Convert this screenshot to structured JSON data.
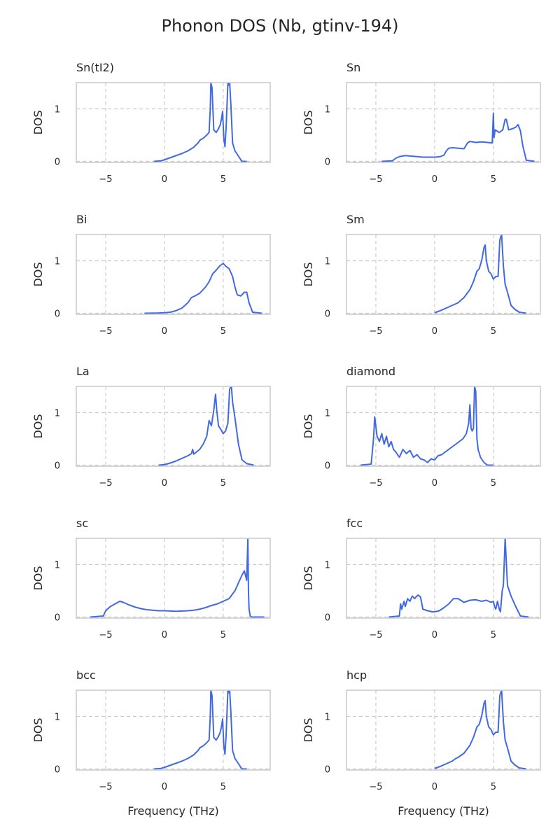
{
  "figure": {
    "title": "Phonon DOS (Nb, gtinv-194)"
  },
  "colors": {
    "line": "#4169e1",
    "grid": "#cccccc",
    "text": "#262626"
  },
  "chart_data": [
    {
      "type": "line",
      "title": "Sn(tI2)",
      "xlabel": "",
      "ylabel": "DOS",
      "xlim": [
        -7.5,
        9.0
      ],
      "ylim": [
        -0.02,
        1.5
      ],
      "xticks": [
        "−5",
        "0",
        "5"
      ],
      "yticks": [
        "0",
        "1"
      ],
      "x": [
        -0.9,
        -0.3,
        0,
        0.5,
        1,
        1.5,
        2,
        2.5,
        2.9,
        3,
        3.3,
        3.6,
        3.8,
        3.9,
        3.95,
        4.05,
        4.2,
        4.4,
        4.6,
        4.75,
        4.85,
        4.95,
        5.05,
        5.15,
        5.25,
        5.4,
        5.5,
        5.55,
        5.65,
        5.8,
        6.0,
        6.3,
        6.5,
        6.6,
        7.0
      ],
      "y": [
        0,
        0.01,
        0.03,
        0.07,
        0.11,
        0.15,
        0.2,
        0.27,
        0.36,
        0.4,
        0.44,
        0.5,
        0.55,
        1.0,
        1.5,
        1.4,
        0.6,
        0.55,
        0.62,
        0.7,
        0.8,
        0.95,
        0.45,
        0.28,
        0.65,
        1.5,
        1.45,
        1.5,
        1.1,
        0.35,
        0.2,
        0.1,
        0.03,
        0,
        0
      ]
    },
    {
      "type": "line",
      "title": "Sn",
      "xlabel": "",
      "ylabel": "DOS",
      "xlim": [
        -7.5,
        9.0
      ],
      "ylim": [
        -0.02,
        1.5
      ],
      "xticks": [
        "−5",
        "0",
        "5"
      ],
      "yticks": [
        "0",
        "1"
      ],
      "x": [
        -4.5,
        -3.6,
        -3.3,
        -3.0,
        -2.5,
        -2.0,
        -1.5,
        -1.0,
        -0.5,
        0,
        0.5,
        0.8,
        1.0,
        1.2,
        1.5,
        2.0,
        2.5,
        2.8,
        3.0,
        3.5,
        4.0,
        4.5,
        4.9,
        5.0,
        5.05,
        5.15,
        5.5,
        5.8,
        6.0,
        6.1,
        6.3,
        6.6,
        6.9,
        7.1,
        7.3,
        7.5,
        7.8,
        8.5
      ],
      "y": [
        0,
        0.01,
        0.06,
        0.09,
        0.11,
        0.1,
        0.09,
        0.08,
        0.08,
        0.08,
        0.09,
        0.12,
        0.2,
        0.25,
        0.26,
        0.25,
        0.24,
        0.35,
        0.38,
        0.36,
        0.37,
        0.36,
        0.35,
        0.92,
        0.45,
        0.6,
        0.55,
        0.6,
        0.8,
        0.8,
        0.6,
        0.62,
        0.65,
        0.7,
        0.58,
        0.3,
        0.02,
        0
      ]
    },
    {
      "type": "line",
      "title": "Bi",
      "xlabel": "",
      "ylabel": "DOS",
      "xlim": [
        -7.5,
        9.0
      ],
      "ylim": [
        -0.02,
        1.5
      ],
      "xticks": [
        "−5",
        "0",
        "5"
      ],
      "yticks": [
        "0",
        "1"
      ],
      "x": [
        -1.7,
        -0.5,
        0,
        0.5,
        1.0,
        1.5,
        2.0,
        2.3,
        2.6,
        3.0,
        3.5,
        3.8,
        4.1,
        4.4,
        4.7,
        5.0,
        5.2,
        5.5,
        5.8,
        6.0,
        6.2,
        6.5,
        6.8,
        7.0,
        7.2,
        7.5,
        8.3
      ],
      "y": [
        0,
        0.005,
        0.01,
        0.02,
        0.05,
        0.1,
        0.2,
        0.3,
        0.33,
        0.38,
        0.5,
        0.6,
        0.75,
        0.82,
        0.9,
        0.95,
        0.9,
        0.85,
        0.7,
        0.5,
        0.35,
        0.33,
        0.4,
        0.4,
        0.2,
        0.02,
        0
      ]
    },
    {
      "type": "line",
      "title": "Sm",
      "xlabel": "",
      "ylabel": "DOS",
      "xlim": [
        -7.5,
        9.0
      ],
      "ylim": [
        -0.02,
        1.5
      ],
      "xticks": [
        "−5",
        "0",
        "5"
      ],
      "yticks": [
        "0",
        "1"
      ],
      "x": [
        0,
        0.5,
        1.0,
        1.5,
        2.0,
        2.5,
        3.0,
        3.3,
        3.6,
        3.8,
        4.0,
        4.2,
        4.3,
        4.4,
        4.6,
        4.8,
        5.0,
        5.2,
        5.4,
        5.55,
        5.7,
        5.85,
        6.0,
        6.2,
        6.5,
        6.8,
        7.2,
        7.8
      ],
      "y": [
        0.01,
        0.05,
        0.1,
        0.15,
        0.2,
        0.3,
        0.45,
        0.6,
        0.8,
        0.85,
        1.0,
        1.25,
        1.3,
        1.0,
        0.8,
        0.75,
        0.65,
        0.7,
        0.7,
        1.4,
        1.5,
        0.9,
        0.55,
        0.4,
        0.15,
        0.08,
        0.02,
        0
      ]
    },
    {
      "type": "line",
      "title": "La",
      "xlabel": "",
      "ylabel": "DOS",
      "xlim": [
        -7.5,
        9.0
      ],
      "ylim": [
        -0.02,
        1.5
      ],
      "xticks": [
        "−5",
        "0",
        "5"
      ],
      "yticks": [
        "0",
        "1"
      ],
      "x": [
        -0.5,
        0,
        0.5,
        1.0,
        1.5,
        2.0,
        2.3,
        2.4,
        2.5,
        3.0,
        3.3,
        3.6,
        3.8,
        4.0,
        4.2,
        4.35,
        4.45,
        4.6,
        4.8,
        5.0,
        5.2,
        5.4,
        5.55,
        5.7,
        5.8,
        6.0,
        6.3,
        6.6,
        7.0,
        7.6
      ],
      "y": [
        0,
        0.01,
        0.04,
        0.08,
        0.13,
        0.18,
        0.22,
        0.3,
        0.21,
        0.3,
        0.4,
        0.55,
        0.85,
        0.75,
        1.05,
        1.35,
        1.05,
        0.75,
        0.68,
        0.6,
        0.65,
        0.8,
        1.45,
        1.5,
        1.2,
        0.9,
        0.4,
        0.1,
        0.03,
        0
      ]
    },
    {
      "type": "line",
      "title": "diamond",
      "xlabel": "",
      "ylabel": "DOS",
      "xlim": [
        -7.5,
        9.0
      ],
      "ylim": [
        -0.02,
        1.5
      ],
      "xticks": [
        "−5",
        "0",
        "5"
      ],
      "yticks": [
        "0",
        "1"
      ],
      "x": [
        -6.3,
        -5.4,
        -5.2,
        -5.1,
        -4.9,
        -4.7,
        -4.5,
        -4.3,
        -4.1,
        -3.9,
        -3.7,
        -3.5,
        -3.3,
        -3.0,
        -2.7,
        -2.4,
        -2.1,
        -1.8,
        -1.5,
        -1.2,
        -0.9,
        -0.6,
        -0.3,
        0,
        0.3,
        0.6,
        0.9,
        1.2,
        1.5,
        1.8,
        2.1,
        2.4,
        2.7,
        2.9,
        3.0,
        3.1,
        3.2,
        3.3,
        3.4,
        3.5,
        3.6,
        3.7,
        3.9,
        4.2,
        4.5,
        5.0
      ],
      "y": [
        0,
        0.02,
        0.5,
        0.92,
        0.55,
        0.45,
        0.6,
        0.4,
        0.55,
        0.35,
        0.45,
        0.3,
        0.25,
        0.15,
        0.3,
        0.22,
        0.28,
        0.15,
        0.2,
        0.12,
        0.1,
        0.05,
        0.12,
        0.1,
        0.18,
        0.2,
        0.25,
        0.3,
        0.35,
        0.4,
        0.45,
        0.5,
        0.6,
        0.8,
        1.15,
        0.7,
        0.65,
        0.7,
        1.5,
        1.4,
        0.5,
        0.3,
        0.15,
        0.05,
        0,
        0
      ]
    },
    {
      "type": "line",
      "title": "sc",
      "xlabel": "",
      "ylabel": "DOS",
      "xlim": [
        -7.5,
        9.0
      ],
      "ylim": [
        -0.02,
        1.5
      ],
      "xticks": [
        "−5",
        "0",
        "5"
      ],
      "yticks": [
        "0",
        "1"
      ],
      "x": [
        -6.3,
        -5.2,
        -5.0,
        -4.6,
        -4.2,
        -3.8,
        -3.5,
        -3.0,
        -2.5,
        -2.0,
        -1.5,
        -1.0,
        -0.5,
        0,
        0.5,
        1.0,
        1.5,
        2.0,
        2.5,
        3.0,
        3.5,
        4.0,
        4.5,
        5.0,
        5.5,
        6.0,
        6.3,
        6.6,
        6.8,
        7.0,
        7.1,
        7.15,
        7.2,
        7.3,
        7.4,
        8.5
      ],
      "y": [
        0,
        0.02,
        0.12,
        0.2,
        0.25,
        0.3,
        0.28,
        0.23,
        0.19,
        0.16,
        0.14,
        0.13,
        0.12,
        0.12,
        0.115,
        0.11,
        0.115,
        0.12,
        0.13,
        0.15,
        0.18,
        0.22,
        0.25,
        0.3,
        0.35,
        0.5,
        0.65,
        0.8,
        0.88,
        0.7,
        1.5,
        0.5,
        0.15,
        0.02,
        0,
        0
      ]
    },
    {
      "type": "line",
      "title": "fcc",
      "xlabel": "",
      "ylabel": "DOS",
      "xlim": [
        -7.5,
        9.0
      ],
      "ylim": [
        -0.02,
        1.5
      ],
      "xticks": [
        "−5",
        "0",
        "5"
      ],
      "yticks": [
        "0",
        "1"
      ],
      "x": [
        -3.9,
        -3.0,
        -2.9,
        -2.8,
        -2.6,
        -2.5,
        -2.3,
        -2.1,
        -1.9,
        -1.7,
        -1.6,
        -1.4,
        -1.2,
        -1.0,
        -0.6,
        -0.2,
        0,
        0.4,
        0.8,
        1.2,
        1.6,
        2.0,
        2.5,
        3.0,
        3.5,
        4.0,
        4.4,
        4.8,
        5.0,
        5.1,
        5.2,
        5.35,
        5.5,
        5.6,
        5.75,
        5.85,
        6.0,
        6.2,
        6.5,
        6.9,
        7.3,
        8.0
      ],
      "y": [
        0,
        0.02,
        0.25,
        0.15,
        0.3,
        0.2,
        0.35,
        0.3,
        0.4,
        0.35,
        0.38,
        0.42,
        0.38,
        0.15,
        0.12,
        0.1,
        0.1,
        0.12,
        0.18,
        0.25,
        0.35,
        0.35,
        0.28,
        0.32,
        0.33,
        0.3,
        0.32,
        0.28,
        0.3,
        0.2,
        0.15,
        0.3,
        0.15,
        0.1,
        0.5,
        0.6,
        1.5,
        0.6,
        0.4,
        0.2,
        0.02,
        0
      ]
    },
    {
      "type": "line",
      "title": "bcc",
      "xlabel": "Frequency (THz)",
      "ylabel": "DOS",
      "xlim": [
        -7.5,
        9.0
      ],
      "ylim": [
        -0.02,
        1.5
      ],
      "xticks": [
        "−5",
        "0",
        "5"
      ],
      "yticks": [
        "0",
        "1"
      ],
      "x": [
        -0.9,
        -0.3,
        0,
        0.5,
        1,
        1.5,
        2,
        2.5,
        2.9,
        3,
        3.3,
        3.6,
        3.8,
        3.9,
        3.95,
        4.05,
        4.2,
        4.4,
        4.6,
        4.75,
        4.85,
        4.95,
        5.05,
        5.15,
        5.25,
        5.4,
        5.5,
        5.55,
        5.65,
        5.8,
        6.0,
        6.3,
        6.5,
        6.6,
        7.0
      ],
      "y": [
        0,
        0.01,
        0.03,
        0.07,
        0.11,
        0.15,
        0.2,
        0.27,
        0.36,
        0.4,
        0.44,
        0.5,
        0.55,
        1.0,
        1.5,
        1.4,
        0.6,
        0.55,
        0.62,
        0.7,
        0.8,
        0.95,
        0.45,
        0.28,
        0.65,
        1.5,
        1.45,
        1.5,
        1.1,
        0.35,
        0.2,
        0.1,
        0.03,
        0,
        0
      ]
    },
    {
      "type": "line",
      "title": "hcp",
      "xlabel": "Frequency (THz)",
      "ylabel": "DOS",
      "xlim": [
        -7.5,
        9.0
      ],
      "ylim": [
        -0.02,
        1.5
      ],
      "xticks": [
        "−5",
        "0",
        "5"
      ],
      "yticks": [
        "0",
        "1"
      ],
      "x": [
        0,
        0.5,
        1.0,
        1.5,
        1.8,
        2.0,
        2.5,
        3.0,
        3.3,
        3.6,
        3.8,
        4.0,
        4.2,
        4.3,
        4.4,
        4.6,
        4.8,
        5.0,
        5.2,
        5.4,
        5.55,
        5.7,
        5.85,
        6.0,
        6.2,
        6.5,
        6.8,
        7.2,
        7.8
      ],
      "y": [
        0.01,
        0.05,
        0.1,
        0.15,
        0.2,
        0.22,
        0.3,
        0.45,
        0.6,
        0.8,
        0.85,
        1.0,
        1.25,
        1.3,
        1.0,
        0.8,
        0.75,
        0.65,
        0.7,
        0.7,
        1.4,
        1.5,
        0.9,
        0.55,
        0.4,
        0.15,
        0.08,
        0.02,
        0
      ]
    }
  ]
}
